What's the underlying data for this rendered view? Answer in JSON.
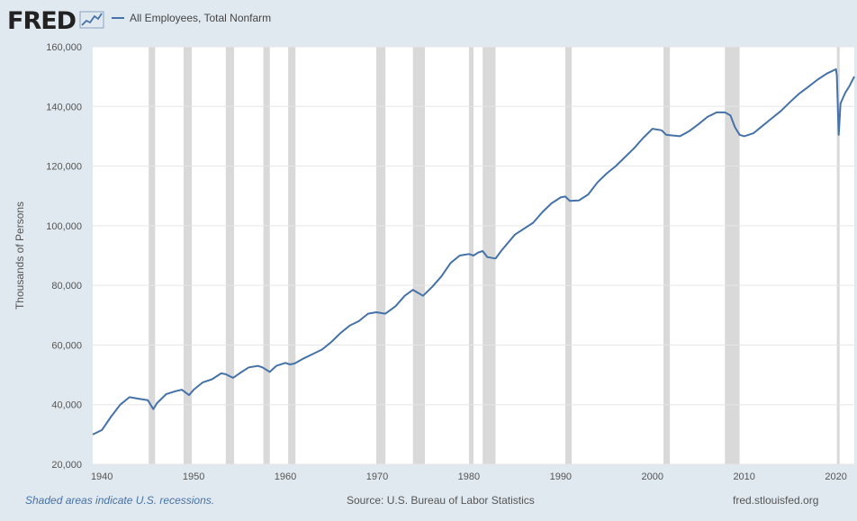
{
  "header": {
    "logo_text": "FRED",
    "logo_icon": "line-chart-icon",
    "series_label": "All Employees, Total Nonfarm"
  },
  "footer": {
    "recession_note": "Shaded areas indicate U.S. recessions.",
    "source": "Source: U.S. Bureau of Labor Statistics",
    "site": "fred.stlouisfed.org"
  },
  "colors": {
    "series": "#4572a7",
    "recession": "#d9d9d9",
    "frame": "#e1e9f0",
    "plot_bg": "#ffffff"
  },
  "chart_data": {
    "type": "line",
    "title": "",
    "xlabel": "",
    "ylabel": "Thousands of Persons",
    "xlim": [
      1939,
      2022
    ],
    "ylim": [
      20000,
      160000
    ],
    "x_ticks": [
      1940,
      1950,
      1960,
      1970,
      1980,
      1990,
      2000,
      2010,
      2020
    ],
    "y_ticks": [
      20000,
      40000,
      60000,
      80000,
      100000,
      120000,
      140000,
      160000
    ],
    "y_tick_labels": [
      "20,000",
      "40,000",
      "60,000",
      "80,000",
      "100,000",
      "120,000",
      "140,000",
      "160,000"
    ],
    "grid": true,
    "legend": "top-left",
    "recessions": [
      [
        1945.1,
        1945.8
      ],
      [
        1948.9,
        1949.8
      ],
      [
        1953.5,
        1954.4
      ],
      [
        1957.6,
        1958.3
      ],
      [
        1960.3,
        1961.1
      ],
      [
        1969.9,
        1970.9
      ],
      [
        1973.9,
        1975.2
      ],
      [
        1980.0,
        1980.5
      ],
      [
        1981.5,
        1982.9
      ],
      [
        1990.5,
        1991.2
      ],
      [
        2001.2,
        2001.9
      ],
      [
        2007.9,
        2009.5
      ],
      [
        2020.1,
        2020.4
      ]
    ],
    "series": [
      {
        "name": "All Employees, Total Nonfarm",
        "x": [
          1939.0,
          1940.0,
          1941.0,
          1942.0,
          1943.0,
          1944.0,
          1945.0,
          1945.6,
          1946.0,
          1947.0,
          1948.0,
          1948.7,
          1949.5,
          1950.0,
          1951.0,
          1952.0,
          1953.0,
          1953.5,
          1954.3,
          1955.0,
          1956.0,
          1957.0,
          1957.5,
          1958.3,
          1959.0,
          1960.0,
          1960.5,
          1961.0,
          1962.0,
          1963.0,
          1964.0,
          1965.0,
          1966.0,
          1967.0,
          1968.0,
          1969.0,
          1969.9,
          1970.9,
          1972.0,
          1973.0,
          1973.9,
          1975.0,
          1976.0,
          1977.0,
          1978.0,
          1979.0,
          1980.0,
          1980.5,
          1981.0,
          1981.5,
          1982.0,
          1982.9,
          1983.5,
          1985.0,
          1987.0,
          1988.0,
          1989.0,
          1990.0,
          1990.5,
          1991.0,
          1992.0,
          1993.0,
          1994.0,
          1995.0,
          1996.0,
          1997.0,
          1998.0,
          1999.0,
          2000.0,
          2001.0,
          2001.5,
          2002.0,
          2003.0,
          2004.0,
          2005.0,
          2006.0,
          2007.0,
          2007.9,
          2008.5,
          2009.0,
          2009.5,
          2010.0,
          2011.0,
          2012.0,
          2013.0,
          2014.0,
          2015.0,
          2016.0,
          2017.0,
          2018.0,
          2019.0,
          2020.0,
          2020.1,
          2020.3,
          2020.5,
          2021.0,
          2021.5,
          2022.0
        ],
        "y": [
          30000,
          31500,
          36000,
          40000,
          42500,
          42000,
          41500,
          38500,
          40500,
          43500,
          44500,
          45000,
          43200,
          45000,
          47500,
          48500,
          50500,
          50200,
          49000,
          50500,
          52500,
          53000,
          52500,
          51000,
          53000,
          54000,
          53500,
          53800,
          55500,
          57000,
          58500,
          61000,
          64000,
          66500,
          68000,
          70500,
          71000,
          70500,
          73000,
          76500,
          78500,
          76500,
          79500,
          83000,
          87500,
          90000,
          90500,
          90000,
          91000,
          91500,
          89500,
          89000,
          91500,
          97000,
          101000,
          104500,
          107500,
          109500,
          109800,
          108300,
          108500,
          110500,
          114500,
          117500,
          120000,
          123000,
          126000,
          129500,
          132500,
          132000,
          130500,
          130300,
          130000,
          131700,
          134000,
          136500,
          138000,
          138000,
          137000,
          133000,
          130500,
          130000,
          131000,
          133500,
          136000,
          138500,
          141500,
          144300,
          146600,
          149000,
          151000,
          152500,
          150500,
          130500,
          141000,
          144500,
          147000,
          150000
        ]
      }
    ]
  }
}
